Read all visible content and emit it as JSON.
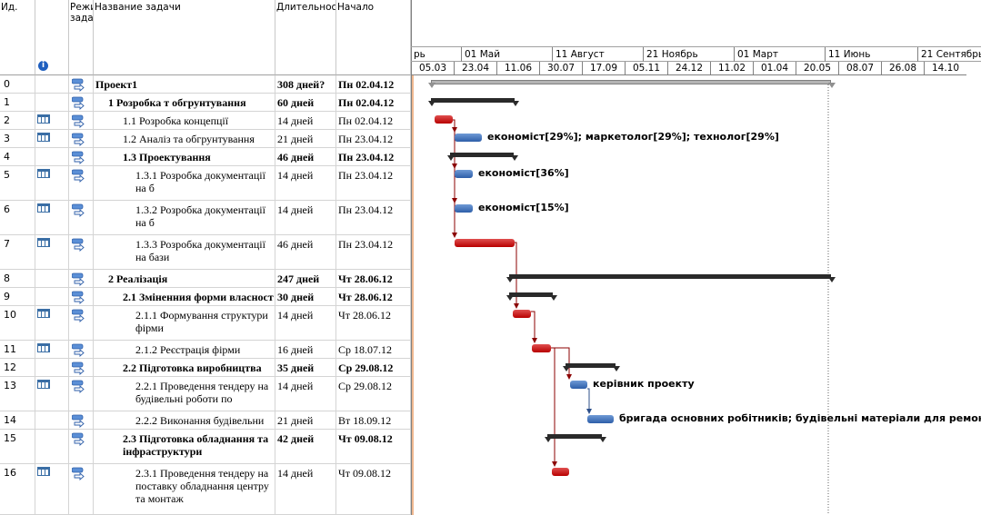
{
  "columns": {
    "id": "Ид.",
    "mode": "Режи\nзада",
    "name": "Название задачи",
    "duration": "Длительнос",
    "start": "Начало"
  },
  "timescale": {
    "major": [
      {
        "label": "рь"
      },
      {
        "label": "01 Май"
      },
      {
        "label": "11 Август"
      },
      {
        "label": "21 Ноябрь"
      },
      {
        "label": "01 Март"
      },
      {
        "label": "11 Июнь"
      },
      {
        "label": "21 Сентябрь"
      }
    ],
    "minor": [
      "05.03",
      "23.04",
      "11.06",
      "30.07",
      "17.09",
      "05.11",
      "24.12",
      "11.02",
      "01.04",
      "20.05",
      "08.07",
      "26.08",
      "14.10"
    ]
  },
  "tasks": [
    {
      "id": "0",
      "name": "Проект1",
      "duration": "308 дней?",
      "start": "Пн 02.04.12",
      "bold": true,
      "indent": 0,
      "cal": false
    },
    {
      "id": "1",
      "name": "1 Розробка т обгрунтування",
      "duration": "60 дней",
      "start": "Пн 02.04.12",
      "bold": true,
      "indent": 1,
      "cal": false
    },
    {
      "id": "2",
      "name": "1.1 Розробка концепції",
      "duration": "14 дней",
      "start": "Пн 02.04.12",
      "bold": false,
      "indent": 2,
      "cal": true
    },
    {
      "id": "3",
      "name": "1.2 Аналіз та обгрунтування",
      "duration": "21 дней",
      "start": "Пн 23.04.12",
      "bold": false,
      "indent": 2,
      "cal": true
    },
    {
      "id": "4",
      "name": "1.3 Проектування",
      "duration": "46 дней",
      "start": "Пн 23.04.12",
      "bold": true,
      "indent": 2,
      "cal": false
    },
    {
      "id": "5",
      "name": "1.3.1 Розробка документації на б",
      "duration": "14 дней",
      "start": "Пн 23.04.12",
      "bold": false,
      "indent": 3,
      "cal": true
    },
    {
      "id": "6",
      "name": "1.3.2 Розробка документації на б",
      "duration": "14 дней",
      "start": "Пн 23.04.12",
      "bold": false,
      "indent": 3,
      "cal": true
    },
    {
      "id": "7",
      "name": "1.3.3 Розробка документації на бази",
      "duration": "46 дней",
      "start": "Пн 23.04.12",
      "bold": false,
      "indent": 3,
      "cal": true
    },
    {
      "id": "8",
      "name": "2 Реалізація",
      "duration": "247 дней",
      "start": "Чт 28.06.12",
      "bold": true,
      "indent": 1,
      "cal": false
    },
    {
      "id": "9",
      "name": "2.1 Зміненния форми власност",
      "duration": "30 дней",
      "start": "Чт 28.06.12",
      "bold": true,
      "indent": 2,
      "cal": false
    },
    {
      "id": "10",
      "name": "2.1.1 Формування структури фірми",
      "duration": "14 дней",
      "start": "Чт 28.06.12",
      "bold": false,
      "indent": 3,
      "cal": true
    },
    {
      "id": "11",
      "name": "2.1.2 Реєстрація фірми",
      "duration": "16 дней",
      "start": "Ср 18.07.12",
      "bold": false,
      "indent": 3,
      "cal": true
    },
    {
      "id": "12",
      "name": "2.2 Підготовка виробництва",
      "duration": "35 дней",
      "start": "Ср 29.08.12",
      "bold": true,
      "indent": 2,
      "cal": false
    },
    {
      "id": "13",
      "name": "2.2.1 Проведення тендеру на будівельні роботи по",
      "duration": "14 дней",
      "start": "Ср 29.08.12",
      "bold": false,
      "indent": 3,
      "cal": true
    },
    {
      "id": "14",
      "name": "2.2.2 Виконання будівельни",
      "duration": "21 дней",
      "start": "Вт 18.09.12",
      "bold": false,
      "indent": 3,
      "cal": false
    },
    {
      "id": "15",
      "name": "2.3 Підготовка обладнання та інфраструктури",
      "duration": "42 дней",
      "start": "Чт 09.08.12",
      "bold": true,
      "indent": 2,
      "cal": false
    },
    {
      "id": "16",
      "name": "2.3.1 Проведення тендеру на поставку обладнання центру та монтаж",
      "duration": "14 дней",
      "start": "Чт 09.08.12",
      "bold": false,
      "indent": 3,
      "cal": true
    }
  ],
  "resources": {
    "r3": "економіст[29%]; маркетолог[29%]; технолог[29%]",
    "r5": "економіст[36%]",
    "r6": "економіст[15%]",
    "r13": "керівник проекту",
    "r14": "бригада основних робітників; будівельні матеріали для ремонту офісу["
  },
  "colors": {
    "critical": "#c00000",
    "normal": "#2d5ea8",
    "summary": "#2a2a2a",
    "today_line": "#e07020"
  }
}
